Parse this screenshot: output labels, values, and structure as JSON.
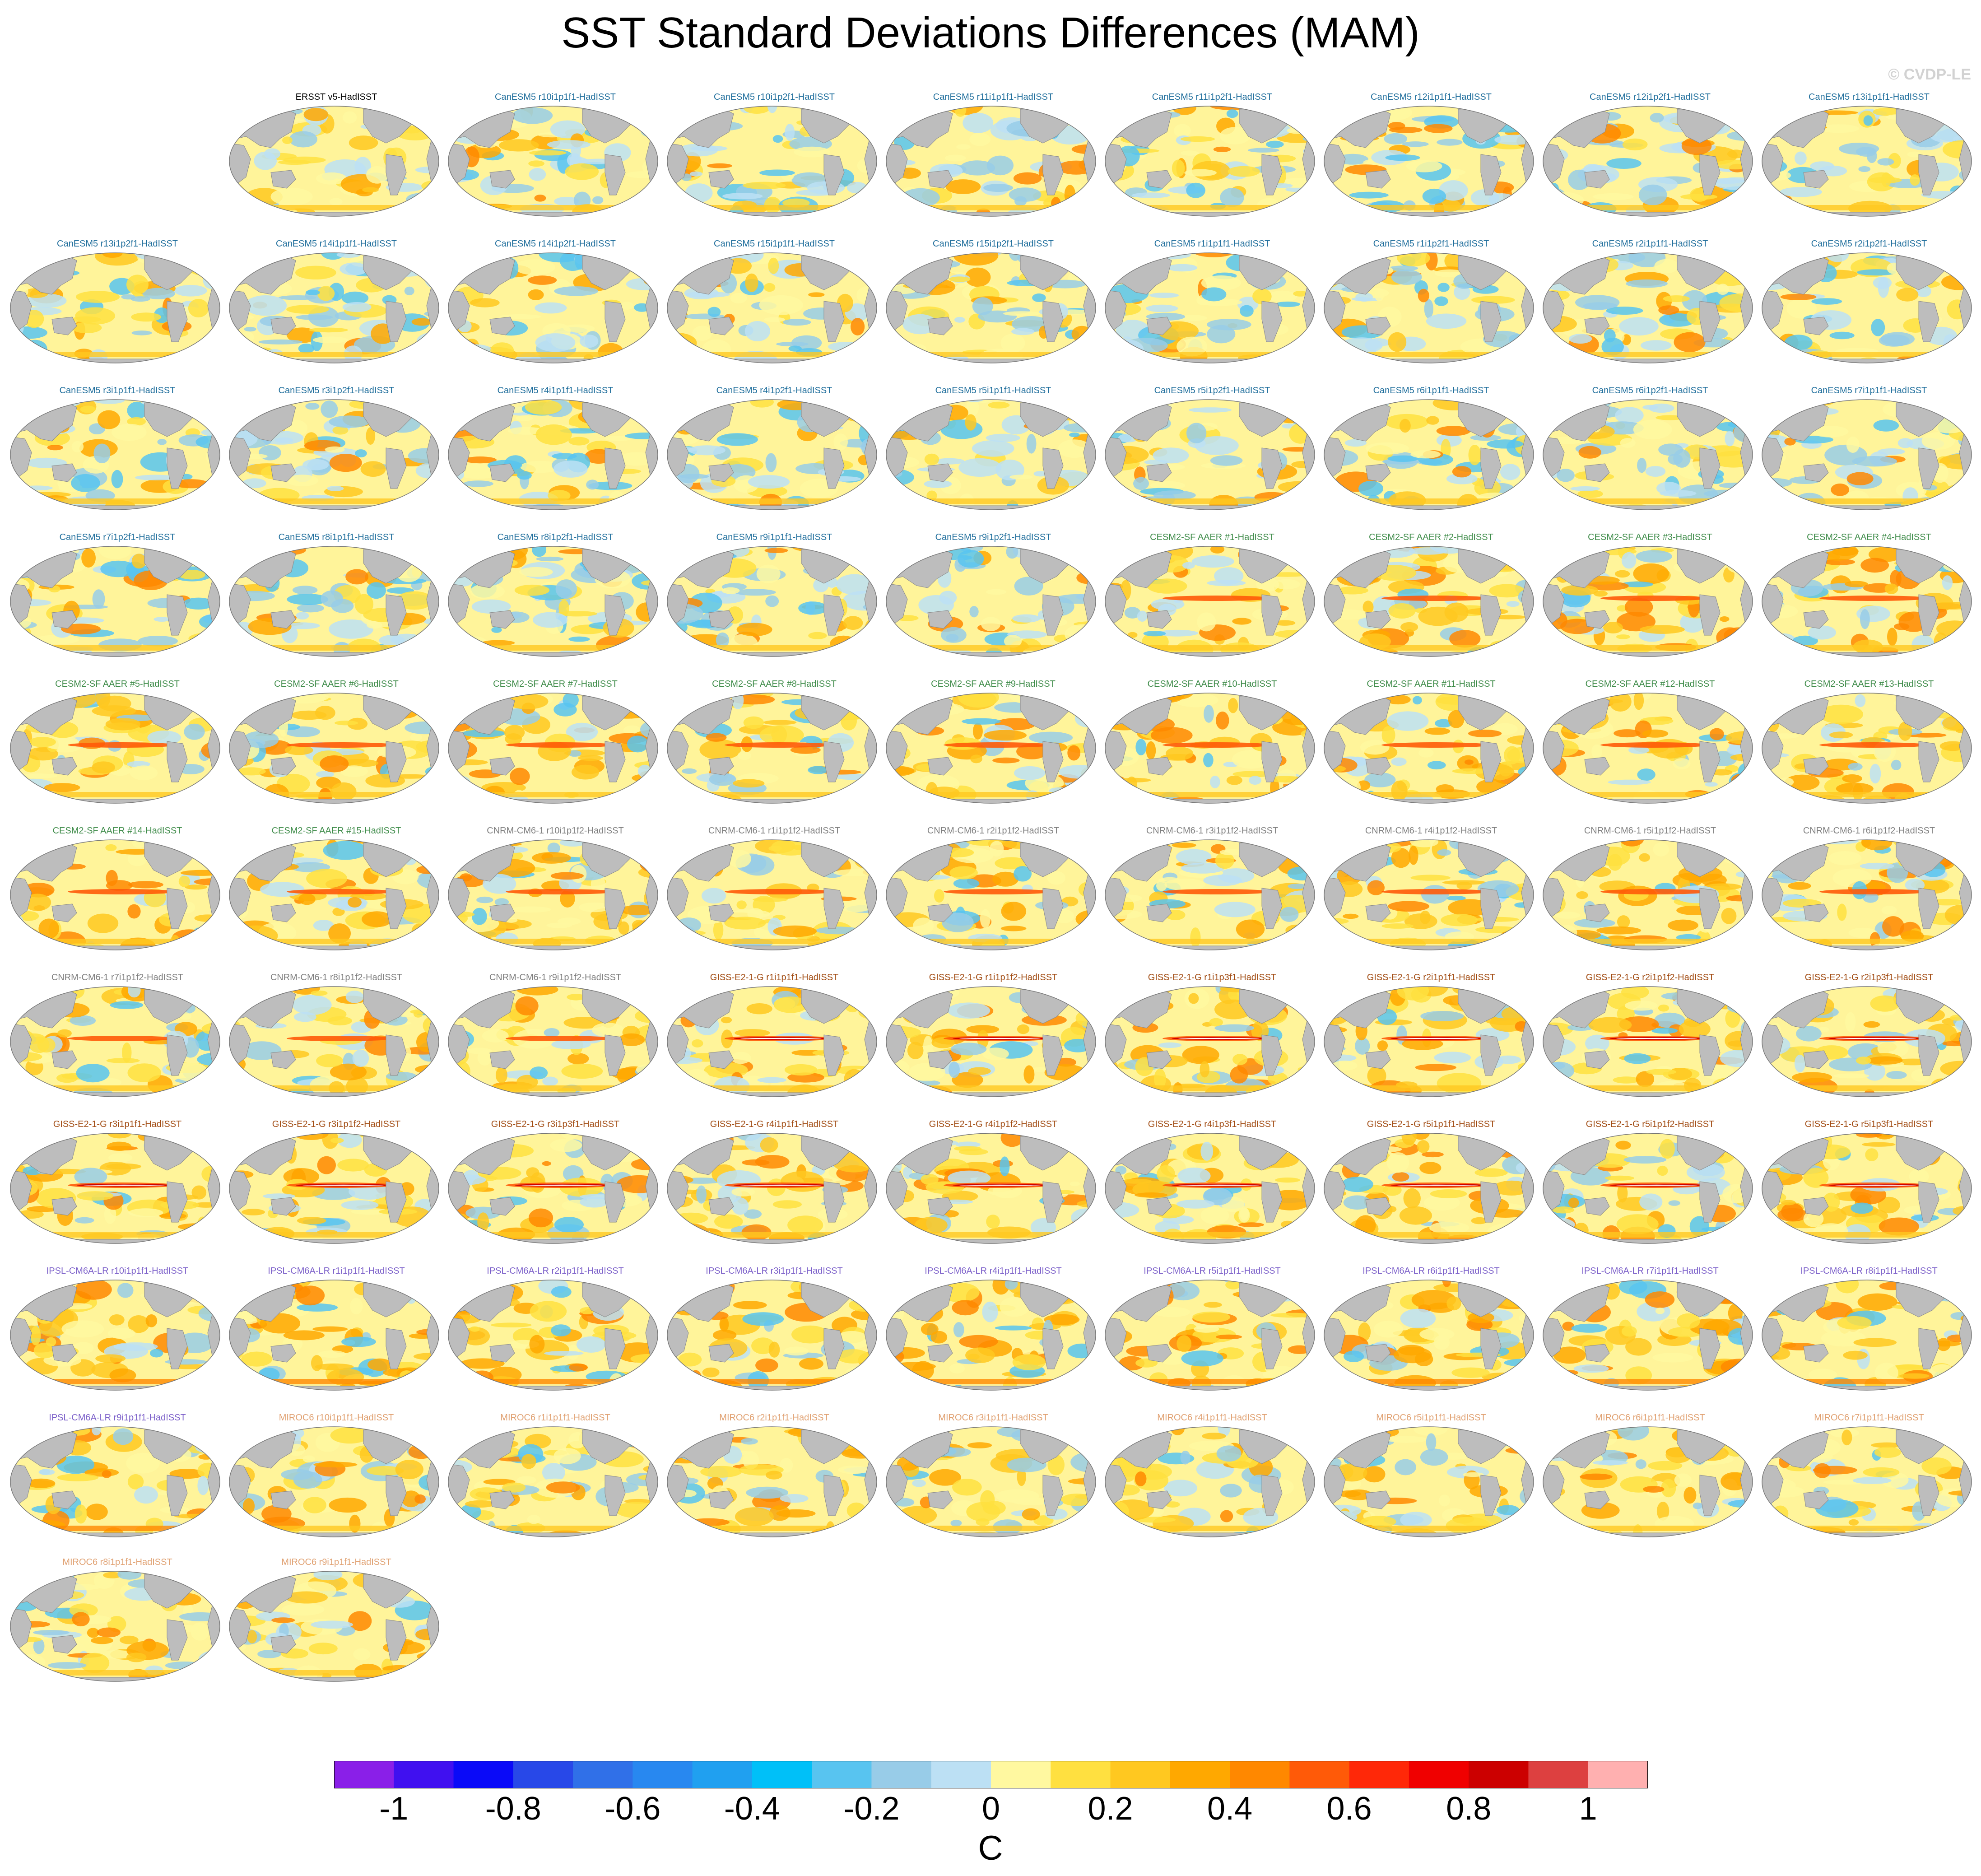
{
  "title": "SST Standard Deviations Differences (MAM)",
  "watermark": "© CVDP-LE",
  "label_colors": {
    "obs": "#000000",
    "CanESM5": "#1f6e9c",
    "CESM2-SF AAER": "#3f8c4a",
    "CNRM-CM6-1": "#7f7f7f",
    "GISS-E2-1-G": "#a14b12",
    "IPSL-CM6A-LR": "#7b5fc9",
    "MIROC6": "#e0a070"
  },
  "map_colors": {
    "land": "#bdbdbd",
    "coast": "#8a8a8a",
    "base_ocean": "#fff49a"
  },
  "panels": [
    {
      "label": "ERSST v5-HadISST",
      "model": "obs"
    },
    {
      "label": "CanESM5 r10i1p1f1-HadISST",
      "model": "CanESM5"
    },
    {
      "label": "CanESM5 r10i1p2f1-HadISST",
      "model": "CanESM5"
    },
    {
      "label": "CanESM5 r11i1p1f1-HadISST",
      "model": "CanESM5"
    },
    {
      "label": "CanESM5 r11i1p2f1-HadISST",
      "model": "CanESM5"
    },
    {
      "label": "CanESM5 r12i1p1f1-HadISST",
      "model": "CanESM5"
    },
    {
      "label": "CanESM5 r12i1p2f1-HadISST",
      "model": "CanESM5"
    },
    {
      "label": "CanESM5 r13i1p1f1-HadISST",
      "model": "CanESM5"
    },
    {
      "label": "CanESM5 r13i1p2f1-HadISST",
      "model": "CanESM5"
    },
    {
      "label": "CanESM5 r14i1p1f1-HadISST",
      "model": "CanESM5"
    },
    {
      "label": "CanESM5 r14i1p2f1-HadISST",
      "model": "CanESM5"
    },
    {
      "label": "CanESM5 r15i1p1f1-HadISST",
      "model": "CanESM5"
    },
    {
      "label": "CanESM5 r15i1p2f1-HadISST",
      "model": "CanESM5"
    },
    {
      "label": "CanESM5 r1i1p1f1-HadISST",
      "model": "CanESM5"
    },
    {
      "label": "CanESM5 r1i1p2f1-HadISST",
      "model": "CanESM5"
    },
    {
      "label": "CanESM5 r2i1p1f1-HadISST",
      "model": "CanESM5"
    },
    {
      "label": "CanESM5 r2i1p2f1-HadISST",
      "model": "CanESM5"
    },
    {
      "label": "CanESM5 r3i1p1f1-HadISST",
      "model": "CanESM5"
    },
    {
      "label": "CanESM5 r3i1p2f1-HadISST",
      "model": "CanESM5"
    },
    {
      "label": "CanESM5 r4i1p1f1-HadISST",
      "model": "CanESM5"
    },
    {
      "label": "CanESM5 r4i1p2f1-HadISST",
      "model": "CanESM5"
    },
    {
      "label": "CanESM5 r5i1p1f1-HadISST",
      "model": "CanESM5"
    },
    {
      "label": "CanESM5 r5i1p2f1-HadISST",
      "model": "CanESM5"
    },
    {
      "label": "CanESM5 r6i1p1f1-HadISST",
      "model": "CanESM5"
    },
    {
      "label": "CanESM5 r6i1p2f1-HadISST",
      "model": "CanESM5"
    },
    {
      "label": "CanESM5 r7i1p1f1-HadISST",
      "model": "CanESM5"
    },
    {
      "label": "CanESM5 r7i1p2f1-HadISST",
      "model": "CanESM5"
    },
    {
      "label": "CanESM5 r8i1p1f1-HadISST",
      "model": "CanESM5"
    },
    {
      "label": "CanESM5 r8i1p2f1-HadISST",
      "model": "CanESM5"
    },
    {
      "label": "CanESM5 r9i1p1f1-HadISST",
      "model": "CanESM5"
    },
    {
      "label": "CanESM5 r9i1p2f1-HadISST",
      "model": "CanESM5"
    },
    {
      "label": "CESM2-SF AAER #1-HadISST",
      "model": "CESM2-SF AAER"
    },
    {
      "label": "CESM2-SF AAER #2-HadISST",
      "model": "CESM2-SF AAER"
    },
    {
      "label": "CESM2-SF AAER #3-HadISST",
      "model": "CESM2-SF AAER"
    },
    {
      "label": "CESM2-SF AAER #4-HadISST",
      "model": "CESM2-SF AAER"
    },
    {
      "label": "CESM2-SF AAER #5-HadISST",
      "model": "CESM2-SF AAER"
    },
    {
      "label": "CESM2-SF AAER #6-HadISST",
      "model": "CESM2-SF AAER"
    },
    {
      "label": "CESM2-SF AAER #7-HadISST",
      "model": "CESM2-SF AAER"
    },
    {
      "label": "CESM2-SF AAER #8-HadISST",
      "model": "CESM2-SF AAER"
    },
    {
      "label": "CESM2-SF AAER #9-HadISST",
      "model": "CESM2-SF AAER"
    },
    {
      "label": "CESM2-SF AAER #10-HadISST",
      "model": "CESM2-SF AAER"
    },
    {
      "label": "CESM2-SF AAER #11-HadISST",
      "model": "CESM2-SF AAER"
    },
    {
      "label": "CESM2-SF AAER #12-HadISST",
      "model": "CESM2-SF AAER"
    },
    {
      "label": "CESM2-SF AAER #13-HadISST",
      "model": "CESM2-SF AAER"
    },
    {
      "label": "CESM2-SF AAER #14-HadISST",
      "model": "CESM2-SF AAER"
    },
    {
      "label": "CESM2-SF AAER #15-HadISST",
      "model": "CESM2-SF AAER"
    },
    {
      "label": "CNRM-CM6-1 r10i1p1f2-HadISST",
      "model": "CNRM-CM6-1"
    },
    {
      "label": "CNRM-CM6-1 r1i1p1f2-HadISST",
      "model": "CNRM-CM6-1"
    },
    {
      "label": "CNRM-CM6-1 r2i1p1f2-HadISST",
      "model": "CNRM-CM6-1"
    },
    {
      "label": "CNRM-CM6-1 r3i1p1f2-HadISST",
      "model": "CNRM-CM6-1"
    },
    {
      "label": "CNRM-CM6-1 r4i1p1f2-HadISST",
      "model": "CNRM-CM6-1"
    },
    {
      "label": "CNRM-CM6-1 r5i1p1f2-HadISST",
      "model": "CNRM-CM6-1"
    },
    {
      "label": "CNRM-CM6-1 r6i1p1f2-HadISST",
      "model": "CNRM-CM6-1"
    },
    {
      "label": "CNRM-CM6-1 r7i1p1f2-HadISST",
      "model": "CNRM-CM6-1"
    },
    {
      "label": "CNRM-CM6-1 r8i1p1f2-HadISST",
      "model": "CNRM-CM6-1"
    },
    {
      "label": "CNRM-CM6-1 r9i1p1f2-HadISST",
      "model": "CNRM-CM6-1"
    },
    {
      "label": "GISS-E2-1-G r1i1p1f1-HadISST",
      "model": "GISS-E2-1-G"
    },
    {
      "label": "GISS-E2-1-G r1i1p1f2-HadISST",
      "model": "GISS-E2-1-G"
    },
    {
      "label": "GISS-E2-1-G r1i1p3f1-HadISST",
      "model": "GISS-E2-1-G"
    },
    {
      "label": "GISS-E2-1-G r2i1p1f1-HadISST",
      "model": "GISS-E2-1-G"
    },
    {
      "label": "GISS-E2-1-G r2i1p1f2-HadISST",
      "model": "GISS-E2-1-G"
    },
    {
      "label": "GISS-E2-1-G r2i1p3f1-HadISST",
      "model": "GISS-E2-1-G"
    },
    {
      "label": "GISS-E2-1-G r3i1p1f1-HadISST",
      "model": "GISS-E2-1-G"
    },
    {
      "label": "GISS-E2-1-G r3i1p1f2-HadISST",
      "model": "GISS-E2-1-G"
    },
    {
      "label": "GISS-E2-1-G r3i1p3f1-HadISST",
      "model": "GISS-E2-1-G"
    },
    {
      "label": "GISS-E2-1-G r4i1p1f1-HadISST",
      "model": "GISS-E2-1-G"
    },
    {
      "label": "GISS-E2-1-G r4i1p1f2-HadISST",
      "model": "GISS-E2-1-G"
    },
    {
      "label": "GISS-E2-1-G r4i1p3f1-HadISST",
      "model": "GISS-E2-1-G"
    },
    {
      "label": "GISS-E2-1-G r5i1p1f1-HadISST",
      "model": "GISS-E2-1-G"
    },
    {
      "label": "GISS-E2-1-G r5i1p1f2-HadISST",
      "model": "GISS-E2-1-G"
    },
    {
      "label": "GISS-E2-1-G r5i1p3f1-HadISST",
      "model": "GISS-E2-1-G"
    },
    {
      "label": "IPSL-CM6A-LR r10i1p1f1-HadISST",
      "model": "IPSL-CM6A-LR"
    },
    {
      "label": "IPSL-CM6A-LR r1i1p1f1-HadISST",
      "model": "IPSL-CM6A-LR"
    },
    {
      "label": "IPSL-CM6A-LR r2i1p1f1-HadISST",
      "model": "IPSL-CM6A-LR"
    },
    {
      "label": "IPSL-CM6A-LR r3i1p1f1-HadISST",
      "model": "IPSL-CM6A-LR"
    },
    {
      "label": "IPSL-CM6A-LR r4i1p1f1-HadISST",
      "model": "IPSL-CM6A-LR"
    },
    {
      "label": "IPSL-CM6A-LR r5i1p1f1-HadISST",
      "model": "IPSL-CM6A-LR"
    },
    {
      "label": "IPSL-CM6A-LR r6i1p1f1-HadISST",
      "model": "IPSL-CM6A-LR"
    },
    {
      "label": "IPSL-CM6A-LR r7i1p1f1-HadISST",
      "model": "IPSL-CM6A-LR"
    },
    {
      "label": "IPSL-CM6A-LR r8i1p1f1-HadISST",
      "model": "IPSL-CM6A-LR"
    },
    {
      "label": "IPSL-CM6A-LR r9i1p1f1-HadISST",
      "model": "IPSL-CM6A-LR"
    },
    {
      "label": "MIROC6 r10i1p1f1-HadISST",
      "model": "MIROC6"
    },
    {
      "label": "MIROC6 r1i1p1f1-HadISST",
      "model": "MIROC6"
    },
    {
      "label": "MIROC6 r2i1p1f1-HadISST",
      "model": "MIROC6"
    },
    {
      "label": "MIROC6 r3i1p1f1-HadISST",
      "model": "MIROC6"
    },
    {
      "label": "MIROC6 r4i1p1f1-HadISST",
      "model": "MIROC6"
    },
    {
      "label": "MIROC6 r5i1p1f1-HadISST",
      "model": "MIROC6"
    },
    {
      "label": "MIROC6 r6i1p1f1-HadISST",
      "model": "MIROC6"
    },
    {
      "label": "MIROC6 r7i1p1f1-HadISST",
      "model": "MIROC6"
    },
    {
      "label": "MIROC6 r8i1p1f1-HadISST",
      "model": "MIROC6"
    },
    {
      "label": "MIROC6 r9i1p1f1-HadISST",
      "model": "MIROC6"
    }
  ],
  "colorbar": {
    "unit": "C",
    "ticks": [
      "-1",
      "-0.8",
      "-0.6",
      "-0.4",
      "-0.2",
      "0",
      "0.2",
      "0.4",
      "0.6",
      "0.8",
      "1"
    ],
    "colors": [
      "#8a1fe8",
      "#4010f0",
      "#0a0af8",
      "#2848e8",
      "#3070e8",
      "#2888f0",
      "#20a0f0",
      "#00c0f8",
      "#58c4f0",
      "#98cce8",
      "#bce0f4",
      "#fff8a0",
      "#ffe040",
      "#ffc820",
      "#ffa800",
      "#ff8800",
      "#ff5a08",
      "#ff2808",
      "#f00000",
      "#cc0000",
      "#dd4040",
      "#ffb0b0"
    ]
  }
}
